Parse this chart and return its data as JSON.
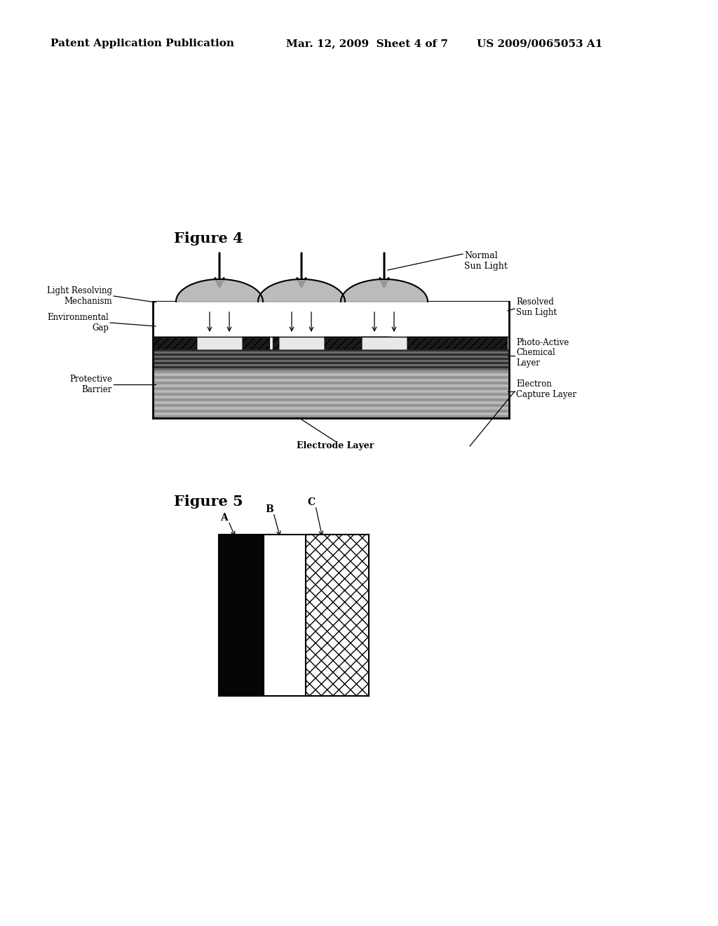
{
  "bg_color": "#ffffff",
  "header_left": "Patent Application Publication",
  "header_mid": "Mar. 12, 2009  Sheet 4 of 7",
  "header_right": "US 2009/0065053 A1",
  "fig4_title": "Figure 4",
  "fig5_title": "Figure 5",
  "labels_fig4": {
    "normal_sun_light": "Normal\nSun Light",
    "resolved_sun_light": "Resolved\nSun Light",
    "light_resolving": "Light Resolving\nMechanism",
    "environmental_gap": "Environmental\nGap",
    "protective_barrier": "Protective\nBarrier",
    "photo_active": "Photo-Active\nChemical\nLayer",
    "electrode_layer": "Electrode Layer",
    "electron_capture": "Electron\nCapture Layer"
  },
  "labels_fig5": {
    "A": "A",
    "B": "B",
    "C": "C"
  }
}
